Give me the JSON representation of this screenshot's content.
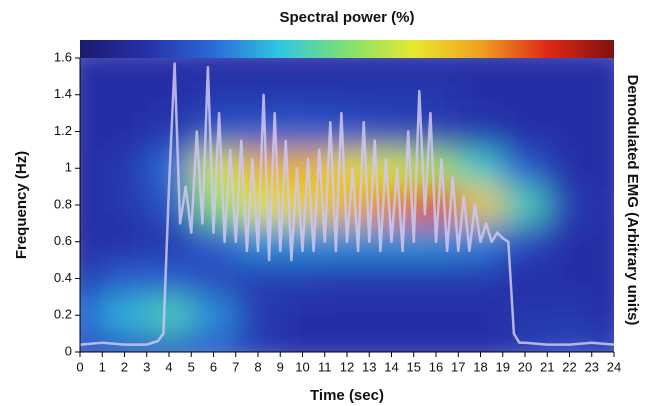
{
  "chart_data": {
    "type": "heatmap",
    "title": "Spectral power (%)",
    "xlabel": "Time (sec)",
    "ylabel": "Frequency (Hz)",
    "y2label": "Demodulated EMG (Arbitrary units)",
    "xlim": [
      0,
      24
    ],
    "xticks": [
      0,
      1,
      2,
      3,
      4,
      5,
      6,
      7,
      8,
      9,
      10,
      11,
      12,
      13,
      14,
      15,
      16,
      17,
      18,
      19,
      20,
      21,
      22,
      23,
      24
    ],
    "ylim": [
      0,
      1.6
    ],
    "yticks": [
      0,
      0.2,
      0.4,
      0.6,
      0.8,
      1,
      1.2,
      1.4,
      1.6
    ],
    "y2lim": [
      0,
      1.6
    ],
    "zlim": [
      0,
      100
    ],
    "colorscale": [
      "#1a1a6e",
      "#2830a8",
      "#2a6ad8",
      "#30c8e0",
      "#80e070",
      "#e8e830",
      "#f0a020",
      "#e02818",
      "#801010"
    ],
    "heatmap": {
      "x": [
        0,
        2,
        4,
        6,
        8,
        10,
        12,
        14,
        16,
        18,
        20,
        22,
        24
      ],
      "y": [
        0,
        0.2,
        0.4,
        0.6,
        0.8,
        1,
        1.2,
        1.4,
        1.6
      ],
      "z": [
        [
          18,
          18,
          20,
          22,
          15,
          12,
          12,
          12,
          12,
          12,
          15,
          18,
          15
        ],
        [
          25,
          35,
          42,
          30,
          15,
          12,
          12,
          12,
          12,
          12,
          14,
          14,
          12
        ],
        [
          15,
          22,
          22,
          18,
          15,
          15,
          14,
          14,
          14,
          14,
          12,
          12,
          12
        ],
        [
          12,
          12,
          14,
          22,
          30,
          30,
          30,
          30,
          30,
          28,
          18,
          12,
          12
        ],
        [
          12,
          14,
          20,
          50,
          62,
          66,
          72,
          78,
          85,
          68,
          42,
          15,
          12
        ],
        [
          12,
          14,
          25,
          60,
          72,
          72,
          66,
          60,
          55,
          40,
          22,
          12,
          12
        ],
        [
          12,
          12,
          14,
          20,
          22,
          22,
          20,
          18,
          16,
          14,
          12,
          12,
          12
        ],
        [
          12,
          12,
          12,
          14,
          14,
          14,
          14,
          14,
          14,
          12,
          12,
          12,
          12
        ],
        [
          12,
          12,
          12,
          12,
          12,
          12,
          12,
          12,
          12,
          12,
          12,
          12,
          12
        ]
      ]
    },
    "emg": {
      "color": "#cfc8f0",
      "axis": "y2",
      "x": [
        0,
        1,
        2,
        3,
        3.5,
        3.75,
        4,
        4.25,
        4.5,
        4.75,
        5,
        5.25,
        5.5,
        5.75,
        6,
        6.25,
        6.5,
        6.75,
        7,
        7.25,
        7.5,
        7.75,
        8,
        8.25,
        8.5,
        8.75,
        9,
        9.25,
        9.5,
        9.75,
        10,
        10.25,
        10.5,
        10.75,
        11,
        11.25,
        11.5,
        11.75,
        12,
        12.25,
        12.5,
        12.75,
        13,
        13.25,
        13.5,
        13.75,
        14,
        14.25,
        14.5,
        14.75,
        15,
        15.25,
        15.5,
        15.75,
        16,
        16.25,
        16.5,
        16.75,
        17,
        17.25,
        17.5,
        17.75,
        18,
        18.25,
        18.5,
        18.75,
        19,
        19.25,
        19.5,
        19.75,
        20,
        21,
        22,
        23,
        24
      ],
      "values": [
        0.04,
        0.05,
        0.04,
        0.04,
        0.06,
        0.1,
        0.9,
        1.57,
        0.7,
        0.9,
        0.65,
        1.2,
        0.7,
        1.55,
        0.65,
        1.3,
        0.6,
        1.1,
        0.6,
        1.15,
        0.55,
        1.05,
        0.55,
        1.4,
        0.5,
        1.3,
        0.55,
        1.15,
        0.5,
        1.0,
        0.55,
        1.05,
        0.55,
        1.1,
        0.6,
        1.25,
        0.55,
        1.3,
        0.6,
        1.0,
        0.55,
        1.25,
        0.6,
        1.15,
        0.55,
        1.05,
        0.6,
        1.0,
        0.55,
        1.2,
        0.6,
        1.42,
        0.75,
        1.3,
        0.6,
        1.05,
        0.55,
        0.95,
        0.55,
        0.85,
        0.55,
        0.8,
        0.6,
        0.7,
        0.6,
        0.65,
        0.62,
        0.6,
        0.1,
        0.05,
        0.05,
        0.04,
        0.04,
        0.05,
        0.04
      ]
    }
  }
}
